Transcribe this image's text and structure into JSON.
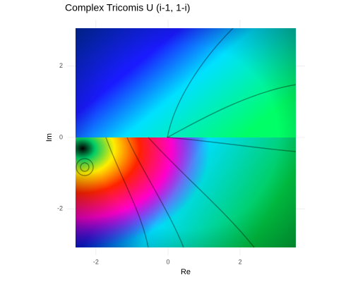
{
  "chart_data": {
    "type": "domain-coloring",
    "title": "Complex Tricomis U (i-1, 1-i)",
    "x_label": "Re",
    "y_label": "Im",
    "xlim": [
      -2.8,
      3.8
    ],
    "ylim": [
      -3.3,
      3.3
    ],
    "xticks": [
      -2,
      0,
      2
    ],
    "yticks": [
      -2,
      0,
      2
    ],
    "grid": true
  }
}
